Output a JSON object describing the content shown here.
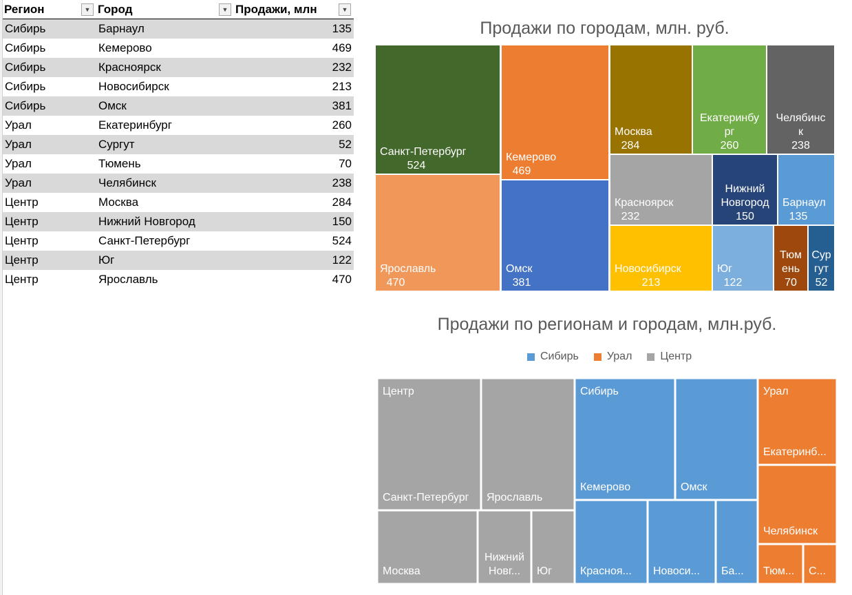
{
  "table": {
    "headers": [
      "Регион",
      "Город",
      "Продажи, млн"
    ],
    "rows": [
      {
        "region": "Сибирь",
        "city": "Барнаул",
        "sales": "135"
      },
      {
        "region": "Сибирь",
        "city": "Кемерово",
        "sales": "469"
      },
      {
        "region": "Сибирь",
        "city": "Красноярск",
        "sales": "232"
      },
      {
        "region": "Сибирь",
        "city": "Новосибирск",
        "sales": "213"
      },
      {
        "region": "Сибирь",
        "city": "Омск",
        "sales": "381"
      },
      {
        "region": "Урал",
        "city": "Екатеринбург",
        "sales": "260"
      },
      {
        "region": "Урал",
        "city": "Сургут",
        "sales": "52"
      },
      {
        "region": "Урал",
        "city": "Тюмень",
        "sales": "70"
      },
      {
        "region": "Урал",
        "city": "Челябинск",
        "sales": "238"
      },
      {
        "region": "Центр",
        "city": "Москва",
        "sales": "284"
      },
      {
        "region": "Центр",
        "city": "Нижний Новгород",
        "sales": "150"
      },
      {
        "region": "Центр",
        "city": "Санкт-Петербург",
        "sales": "524"
      },
      {
        "region": "Центр",
        "city": "Юг",
        "sales": "122"
      },
      {
        "region": "Центр",
        "city": "Ярославль",
        "sales": "470"
      }
    ]
  },
  "chart_data": [
    {
      "type": "treemap",
      "title": "Продажи по городам, млн. руб.",
      "items": [
        {
          "label": "Санкт-Петербург",
          "value": 524,
          "display": [
            "Санкт-Петербург",
            "524"
          ],
          "color": "#43682b"
        },
        {
          "label": "Ярославль",
          "value": 470,
          "display": [
            "Ярославль",
            "470"
          ],
          "color": "#f0975a"
        },
        {
          "label": "Кемерово",
          "value": 469,
          "display": [
            "Кемерово",
            "469"
          ],
          "color": "#ed7d31"
        },
        {
          "label": "Омск",
          "value": 381,
          "display": [
            "Омск",
            "381"
          ],
          "color": "#4472c4"
        },
        {
          "label": "Москва",
          "value": 284,
          "display": [
            "Москва",
            "284"
          ],
          "color": "#997300"
        },
        {
          "label": "Екатеринбург",
          "value": 260,
          "display": [
            "Екатеринбу",
            "рг",
            "260"
          ],
          "color": "#70ad47"
        },
        {
          "label": "Челябинск",
          "value": 238,
          "display": [
            "Челябинс",
            "к",
            "238"
          ],
          "color": "#636363"
        },
        {
          "label": "Красноярск",
          "value": 232,
          "display": [
            "Красноярск",
            "232"
          ],
          "color": "#a5a5a5"
        },
        {
          "label": "Нижний Новгород",
          "value": 150,
          "display": [
            "Нижний",
            "Новгород",
            "150"
          ],
          "color": "#264478"
        },
        {
          "label": "Барнаул",
          "value": 135,
          "display": [
            "Барнаул",
            "135"
          ],
          "color": "#5b9bd5"
        },
        {
          "label": "Новосибирск",
          "value": 213,
          "display": [
            "Новосибирск",
            "213"
          ],
          "color": "#ffc000"
        },
        {
          "label": "Юг",
          "value": 122,
          "display": [
            "Юг",
            "122"
          ],
          "color": "#7cafdd"
        },
        {
          "label": "Тюмень",
          "value": 70,
          "display": [
            "Тюм",
            "ень",
            "70"
          ],
          "color": "#9e480e"
        },
        {
          "label": "Сургут",
          "value": 52,
          "display": [
            "Сур",
            "гут",
            "52"
          ],
          "color": "#255e91"
        }
      ]
    },
    {
      "type": "treemap",
      "title": "Продажи по регионам и городам, млн.руб.",
      "legend": [
        "Сибирь",
        "Урал",
        "Центр"
      ],
      "legend_colors": [
        "#5b9bd5",
        "#ed7d31",
        "#a5a5a5"
      ],
      "legend_position": "top",
      "groups": [
        {
          "name": "Центр",
          "color": "#a5a5a5",
          "items": [
            {
              "label": "Санкт-Петербург",
              "value": 524,
              "display": "Санкт-Петербург"
            },
            {
              "label": "Ярославль",
              "value": 470,
              "display": "Ярославль"
            },
            {
              "label": "Москва",
              "value": 284,
              "display": "Москва"
            },
            {
              "label": "Нижний Новгород",
              "value": 150,
              "display": [
                "Нижний",
                "Новг..."
              ]
            },
            {
              "label": "Юг",
              "value": 122,
              "display": "Юг"
            }
          ]
        },
        {
          "name": "Сибирь",
          "color": "#5b9bd5",
          "items": [
            {
              "label": "Кемерово",
              "value": 469,
              "display": "Кемерово"
            },
            {
              "label": "Омск",
              "value": 381,
              "display": "Омск"
            },
            {
              "label": "Красноярск",
              "value": 232,
              "display": "Красноя..."
            },
            {
              "label": "Новосибирск",
              "value": 213,
              "display": "Новоси..."
            },
            {
              "label": "Барнаул",
              "value": 135,
              "display": "Ба..."
            }
          ]
        },
        {
          "name": "Урал",
          "color": "#ed7d31",
          "items": [
            {
              "label": "Екатеринбург",
              "value": 260,
              "display": "Екатеринб..."
            },
            {
              "label": "Челябинск",
              "value": 238,
              "display": "Челябинск"
            },
            {
              "label": "Тюмень",
              "value": 70,
              "display": "Тюм..."
            },
            {
              "label": "Сургут",
              "value": 52,
              "display": "С..."
            }
          ]
        }
      ]
    }
  ]
}
